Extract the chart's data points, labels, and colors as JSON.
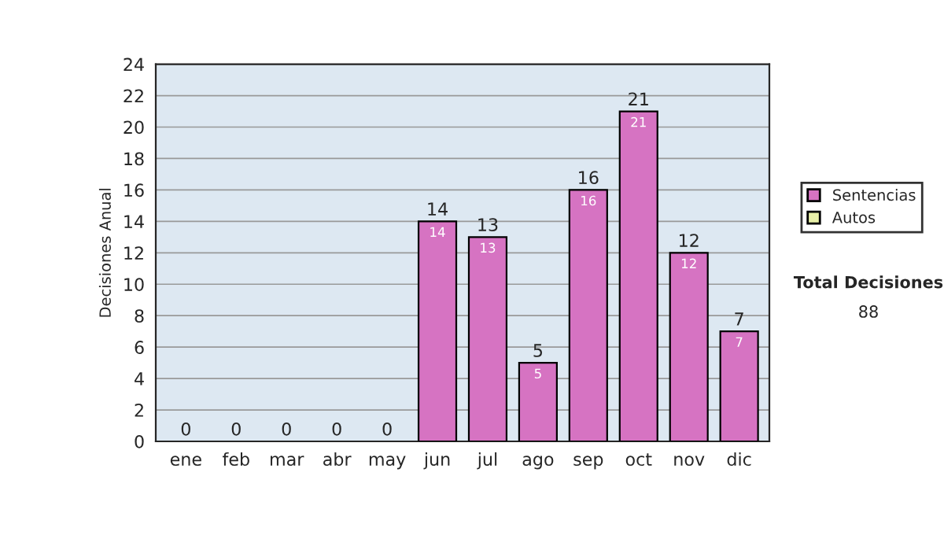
{
  "chart_data": {
    "type": "bar",
    "stacked": true,
    "ylabel": "Decisiones Anual",
    "categories": [
      "ene",
      "feb",
      "mar",
      "abr",
      "may",
      "jun",
      "jul",
      "ago",
      "sep",
      "oct",
      "nov",
      "dic"
    ],
    "series": [
      {
        "name": "Sentencias",
        "color": "#d673c2",
        "values": [
          0,
          0,
          0,
          0,
          0,
          14,
          13,
          5,
          16,
          21,
          12,
          7
        ],
        "value_labels": [
          null,
          null,
          null,
          null,
          null,
          "14",
          "13",
          "5",
          "16",
          "21",
          "12",
          "7"
        ]
      },
      {
        "name": "Autos",
        "color": "#e8f0a8",
        "values": [
          0,
          0,
          0,
          0,
          0,
          0,
          0,
          0,
          0,
          0,
          0,
          0
        ]
      }
    ],
    "totals": [
      "0",
      "0",
      "0",
      "0",
      "0",
      "14",
      "13",
      "5",
      "16",
      "21",
      "12",
      "7"
    ],
    "ylim": [
      0,
      24
    ],
    "yticks": [
      0,
      2,
      4,
      6,
      8,
      10,
      12,
      14,
      16,
      18,
      20,
      22,
      24
    ],
    "grid": "y",
    "legend": "right",
    "annotations": [
      "Total Decisiones",
      "88"
    ]
  }
}
